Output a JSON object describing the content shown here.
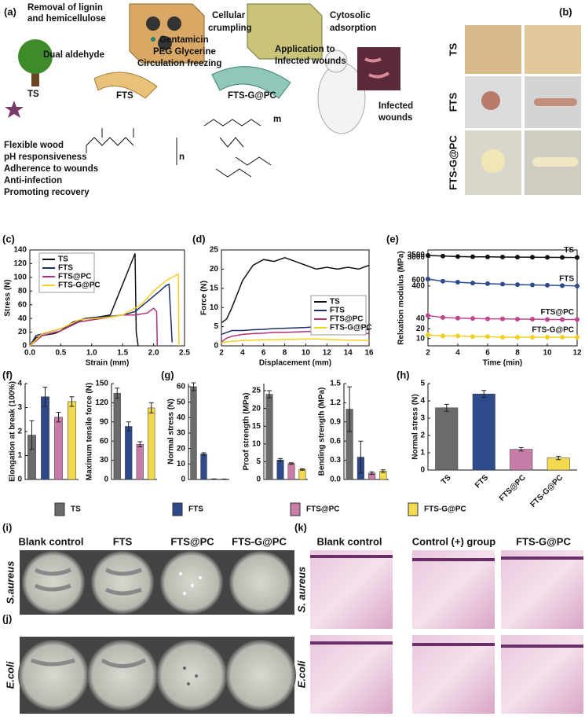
{
  "panels": {
    "a": "(a)",
    "b": "(b)",
    "c": "(c)",
    "d": "(d)",
    "e": "(e)",
    "f": "(f)",
    "g": "(g)",
    "h": "(h)",
    "i": "(i)",
    "j": "(j)",
    "k": "(k)"
  },
  "schematic": {
    "removal": [
      "Removal of lignin",
      "and hemicellulose"
    ],
    "crumpling": [
      "Cellular",
      "crumpling"
    ],
    "adsorption": [
      "Cytosolic",
      "adsorption"
    ],
    "aldehyde": "Dual aldehyde",
    "gentamicin": "Gentamicin",
    "peg": "PEG Glycerine",
    "freezing": "Circulation freezing",
    "application": [
      "Application to",
      "Infected wounds"
    ],
    "infected": [
      "Infected",
      "wounds"
    ],
    "ts": "TS",
    "fts": "FTS",
    "ftsg": "FTS-G@PC",
    "features": [
      "Flexible wood",
      "pH responsiveness",
      "Adherence to wounds",
      "Anti-infection",
      "Promoting recovery"
    ],
    "n": "n",
    "m": "m"
  },
  "photos": {
    "rows": [
      "TS",
      "FTS",
      "FTS-G@PC"
    ]
  },
  "legend": [
    {
      "name": "TS",
      "color": "#6b6b6b"
    },
    {
      "name": "FTS",
      "color": "#2e4a8a"
    },
    {
      "name": "FTS@PC",
      "color": "#c77ca8"
    },
    {
      "name": "FTS-G@PC",
      "color": "#f2d94e"
    }
  ],
  "antibacterial": {
    "columns": [
      "Blank control",
      "FTS",
      "FTS@PC",
      "FTS-G@PC"
    ],
    "row_i": "S.aureus",
    "row_j": "E.coli"
  },
  "histology": {
    "columns": [
      "Blank control",
      "Control (+) group",
      "FTS-G@PC"
    ],
    "rows": [
      "S. aureus",
      "E.coli"
    ]
  },
  "chart_data": [
    {
      "type": "line",
      "xlabel": "Strain (mm)",
      "ylabel": "Stress (N)",
      "xlim": [
        0,
        2.5
      ],
      "xticks": [
        {
          "value": 0,
          "label": "0.0"
        },
        0.5,
        {
          "value": 1,
          "label": "1.0"
        },
        1.5,
        {
          "value": 2,
          "label": "2.0"
        },
        2.5
      ],
      "ylim": [
        0,
        140
      ],
      "yticks": [
        0,
        20,
        40,
        60,
        80,
        100,
        120,
        140
      ],
      "legend": "upper left",
      "series": [
        {
          "name": "TS",
          "color": "#111111",
          "x": [
            0,
            0.1,
            0.2,
            0.4,
            0.5,
            0.7,
            0.9,
            1.1,
            1.3,
            1.5,
            1.7,
            1.72,
            1.75
          ],
          "values": [
            0,
            12,
            15,
            18,
            22,
            35,
            40,
            42,
            45,
            90,
            135,
            20,
            0
          ]
        },
        {
          "name": "FTS",
          "color": "#1f2f6b",
          "x": [
            0,
            0.1,
            0.3,
            0.5,
            0.7,
            0.9,
            1.3,
            1.5,
            1.7,
            1.9,
            2.1,
            2.2,
            2.25,
            2.3
          ],
          "values": [
            0,
            15,
            20,
            25,
            32,
            40,
            43,
            45,
            50,
            65,
            80,
            88,
            90,
            5
          ]
        },
        {
          "name": "FTS@PC",
          "color": "#b0307a",
          "x": [
            0,
            0.2,
            0.5,
            0.8,
            1.3,
            1.5,
            1.7,
            1.9,
            2.0,
            2.05,
            2.06
          ],
          "values": [
            0,
            15,
            22,
            35,
            42,
            45,
            45,
            48,
            55,
            50,
            0
          ]
        },
        {
          "name": "FTS-G@PC",
          "color": "#f5d020",
          "x": [
            0,
            0.2,
            0.5,
            0.8,
            1.3,
            1.5,
            1.8,
            2.0,
            2.2,
            2.3,
            2.4,
            2.41
          ],
          "values": [
            0,
            18,
            25,
            38,
            42,
            45,
            60,
            80,
            95,
            100,
            105,
            0
          ]
        }
      ]
    },
    {
      "type": "line",
      "xlabel": "Displacement (mm)",
      "ylabel": "Force (N)",
      "xlim": [
        2,
        16
      ],
      "xticks": [
        2,
        4,
        6,
        8,
        10,
        12,
        14,
        16
      ],
      "ylim": [
        0,
        25
      ],
      "yticks": [
        0,
        5,
        10,
        15,
        20,
        25
      ],
      "legend": "lower right",
      "series": [
        {
          "name": "TS",
          "color": "#111111",
          "x": [
            2,
            2.5,
            3,
            4,
            5,
            6,
            7,
            8,
            9,
            10,
            11,
            12,
            13,
            14,
            15,
            16
          ],
          "values": [
            6,
            7,
            10,
            17,
            21,
            22.5,
            22,
            23,
            22,
            21,
            20,
            20.5,
            20,
            20.5,
            20,
            21
          ]
        },
        {
          "name": "FTS",
          "color": "#1f2f6b",
          "x": [
            2,
            2.5,
            3,
            4,
            5,
            6,
            7,
            8,
            9,
            10,
            11,
            12,
            13,
            14,
            15,
            16
          ],
          "values": [
            3,
            3.5,
            4,
            4,
            4.2,
            4.3,
            4.5,
            4.6,
            4.7,
            4.8,
            5,
            4.8,
            4.6,
            4.5,
            4.3,
            4.2
          ]
        },
        {
          "name": "FTS@PC",
          "color": "#b0307a",
          "x": [
            2,
            2.5,
            3,
            4,
            5,
            6,
            7,
            8,
            9,
            10,
            11,
            12,
            13,
            14,
            15,
            16
          ],
          "values": [
            1,
            2,
            2.5,
            3,
            3.2,
            3.3,
            3.5,
            3.5,
            3.6,
            3.7,
            3.8,
            3.7,
            3.5,
            3.4,
            3.3,
            3.2
          ]
        },
        {
          "name": "FTS-G@PC",
          "color": "#f5d020",
          "x": [
            2,
            2.5,
            3,
            4,
            5,
            6,
            7,
            8,
            9,
            10,
            11,
            12,
            13,
            14,
            15,
            16
          ],
          "values": [
            0.8,
            1,
            1.2,
            1.4,
            1.5,
            1.6,
            1.6,
            1.7,
            1.7,
            1.8,
            1.8,
            1.7,
            1.6,
            1.5,
            1.5,
            1.4
          ]
        }
      ]
    },
    {
      "type": "line",
      "xlabel": "Time (min)",
      "ylabel": "Relxation modulus (MPa)",
      "xlim": [
        2,
        12
      ],
      "xticks": [
        2,
        4,
        6,
        8,
        10,
        12
      ],
      "ylim": [
        6,
        5000
      ],
      "yticks": [
        10,
        20,
        40,
        400,
        600,
        3000,
        3500
      ],
      "log": true,
      "legend": "inline",
      "markers": true,
      "series": [
        {
          "name": "TS",
          "color": "#111111",
          "x": [
            2,
            3,
            4,
            5,
            6,
            7,
            8,
            9,
            10,
            11,
            12
          ],
          "values": [
            3400,
            3250,
            3150,
            3100,
            3070,
            3040,
            3020,
            3000,
            2980,
            2960,
            2950
          ]
        },
        {
          "name": "FTS",
          "color": "#2e4a8a",
          "x": [
            2,
            3,
            4,
            5,
            6,
            7,
            8,
            9,
            10,
            11,
            12
          ],
          "values": [
            650,
            560,
            520,
            490,
            470,
            455,
            440,
            430,
            420,
            410,
            400
          ]
        },
        {
          "name": "FTS@PC",
          "color": "#c0458f",
          "x": [
            2,
            3,
            4,
            5,
            6,
            7,
            8,
            9,
            10,
            11,
            12
          ],
          "values": [
            50,
            44,
            42,
            41,
            40,
            40,
            39,
            39,
            38,
            38,
            38
          ]
        },
        {
          "name": "FTS-G@PC",
          "color": "#f0d020",
          "x": [
            2,
            3,
            4,
            5,
            6,
            7,
            8,
            9,
            10,
            11,
            12
          ],
          "values": [
            13,
            12,
            12,
            11.5,
            11.5,
            11,
            11,
            11,
            11,
            11,
            11
          ]
        }
      ]
    },
    {
      "type": "bar",
      "ylabel": "Elongation at break (100%)",
      "ylim": [
        0,
        4
      ],
      "yticks": [
        0,
        1,
        2,
        3,
        4
      ],
      "values": [
        1.85,
        3.45,
        2.6,
        3.25
      ],
      "errors": [
        0.6,
        0.4,
        0.2,
        0.2
      ],
      "colors": [
        "#6b6b6b",
        "#2e4a8a",
        "#c77ca8",
        "#f2d94e"
      ]
    },
    {
      "type": "bar",
      "ylabel": "Maximum tensile force (N)",
      "ylim": [
        0,
        150
      ],
      "yticks": [
        0,
        30,
        60,
        90,
        120,
        150
      ],
      "values": [
        135,
        83,
        55,
        112
      ],
      "errors": [
        8,
        7,
        4,
        8
      ],
      "colors": [
        "#6b6b6b",
        "#2e4a8a",
        "#c77ca8",
        "#f2d94e"
      ]
    },
    {
      "type": "bar",
      "ylabel": "Normal stress (N)",
      "ylim": [
        0,
        62
      ],
      "yticks": [
        0,
        10,
        20,
        30,
        40,
        50,
        60
      ],
      "values": [
        60,
        16.5,
        0.3,
        0.2
      ],
      "errors": [
        2.5,
        0.8,
        0.1,
        0.1
      ],
      "colors": [
        "#6b6b6b",
        "#2e4a8a",
        "#c77ca8",
        "#f2d94e"
      ]
    },
    {
      "type": "bar",
      "ylabel": "Proof strength (MPa)",
      "ylim": [
        0,
        27
      ],
      "yticks": [
        0,
        5,
        10,
        15,
        20,
        25
      ],
      "values": [
        24,
        5.5,
        4.5,
        2.8
      ],
      "errors": [
        1,
        0.4,
        0.2,
        0.2
      ],
      "colors": [
        "#6b6b6b",
        "#2e4a8a",
        "#c77ca8",
        "#f2d94e"
      ]
    },
    {
      "type": "bar",
      "ylabel": "Bending strength (MPa)",
      "ylim": [
        0,
        1.5
      ],
      "yticks": [
        {
          "value": 0,
          "label": "0.0"
        },
        0.3,
        0.6,
        0.9,
        1.2,
        1.5
      ],
      "values": [
        1.1,
        0.35,
        0.1,
        0.13
      ],
      "errors": [
        0.35,
        0.25,
        0.02,
        0.02
      ],
      "colors": [
        "#6b6b6b",
        "#2e4a8a",
        "#c77ca8",
        "#f2d94e"
      ]
    },
    {
      "type": "bar",
      "ylabel": "Normal stress (N)",
      "ylim": [
        0,
        5
      ],
      "yticks": [
        0,
        1,
        2,
        3,
        4,
        5
      ],
      "categories": [
        "TS",
        "FTS",
        "FTS@PC",
        "FTS-G@PC"
      ],
      "values": [
        3.6,
        4.4,
        1.2,
        0.7
      ],
      "errors": [
        0.2,
        0.2,
        0.1,
        0.1
      ],
      "colors": [
        "#6b6b6b",
        "#2e4a8a",
        "#c77ca8",
        "#f2d94e"
      ]
    }
  ]
}
